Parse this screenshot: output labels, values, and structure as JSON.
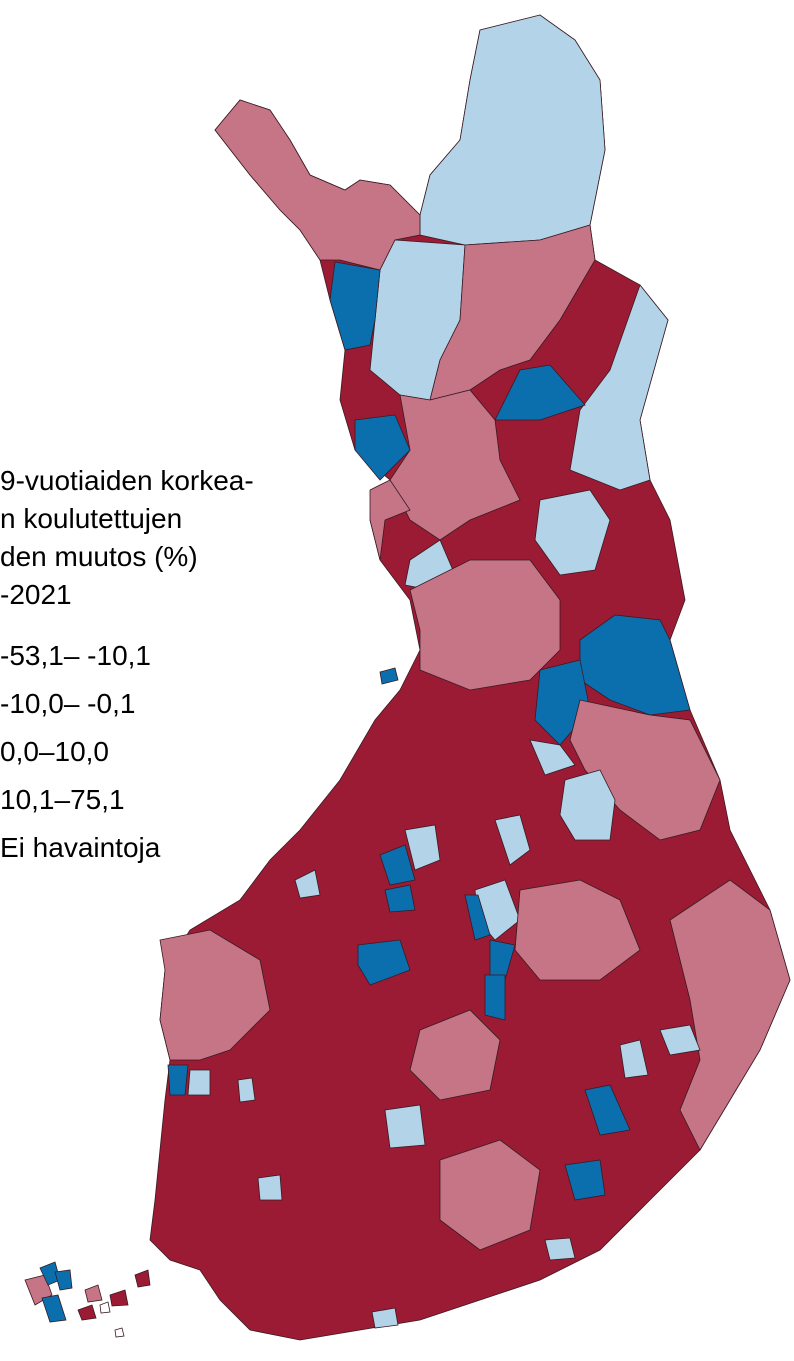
{
  "legend": {
    "title_lines": [
      "9-vuotiaiden korkea-",
      "n koulutettujen",
      "den muutos (%)",
      "-2021"
    ],
    "items": [
      {
        "label": "-53,1– -10,1",
        "color": "#0b6fae"
      },
      {
        "label": "-10,0– -0,1",
        "color": "#b3d3e8"
      },
      {
        "label": "0,0–10,0",
        "color": "#c57585"
      },
      {
        "label": "10,1–75,1",
        "color": "#9b1b34"
      },
      {
        "label": "Ei havaintoja",
        "color": "#ffffff"
      }
    ]
  }
}
